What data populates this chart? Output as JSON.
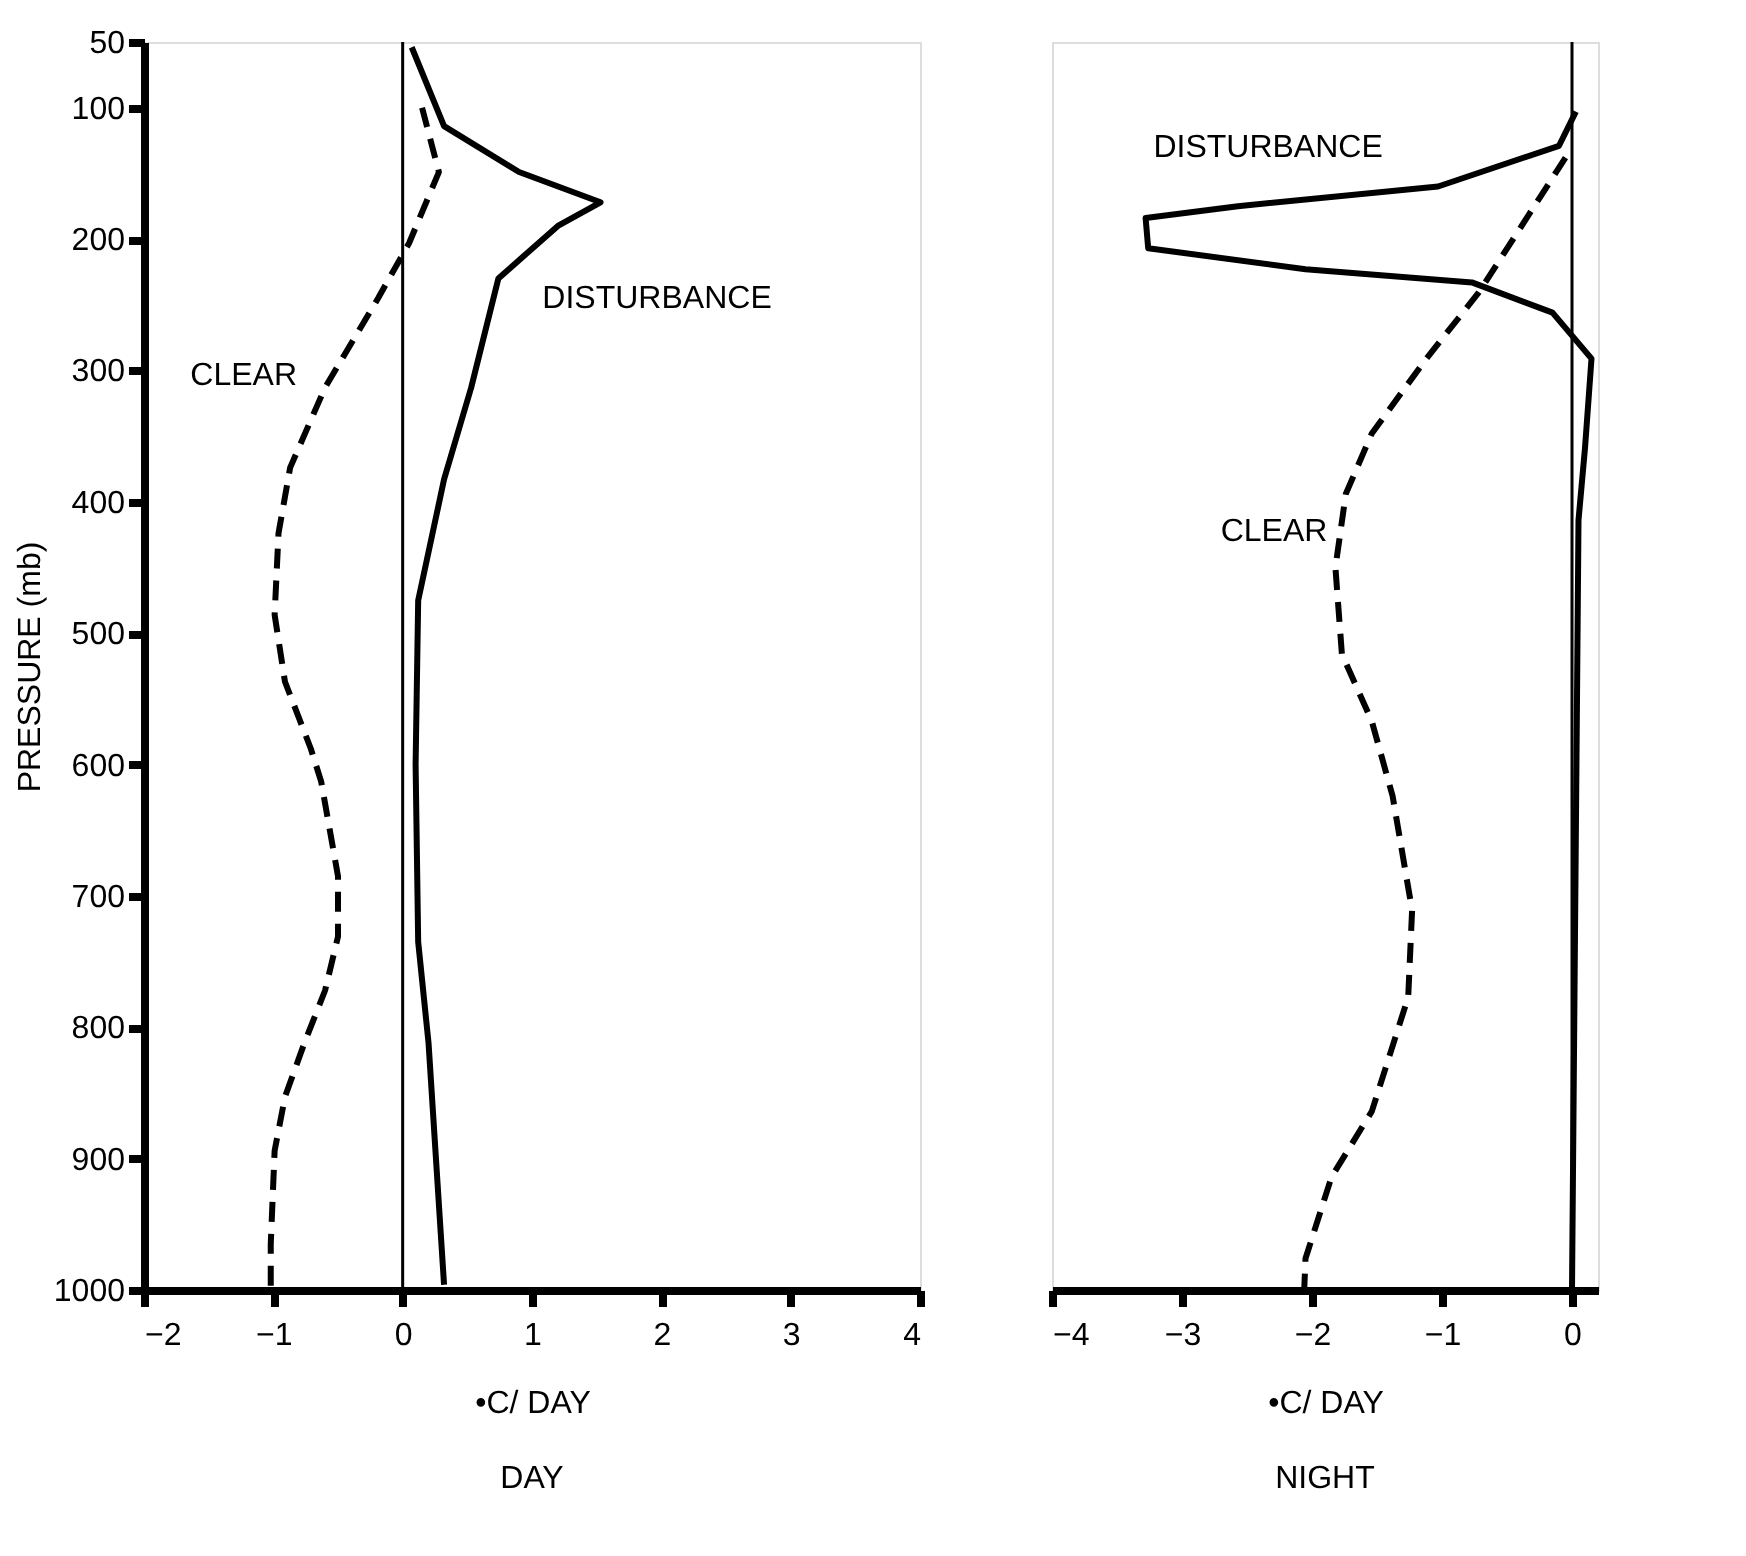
{
  "chart_data": [
    {
      "type": "line",
      "title": "DAY",
      "xlabel": "•C/ DAY",
      "ylabel": "PRESSURE (mb)",
      "xlim": [
        -2,
        4
      ],
      "xticks": [
        -2,
        -1,
        0,
        1,
        2,
        3,
        4
      ],
      "ylim": [
        1000,
        50
      ],
      "yticks": [
        50,
        100,
        200,
        300,
        400,
        500,
        600,
        700,
        800,
        900,
        1000
      ],
      "grid": false,
      "legend": false,
      "marker": "none",
      "ref_lines": [
        {
          "axis": "x",
          "value": 0,
          "color": "#000000"
        }
      ],
      "series": [
        {
          "name": "CLEAR",
          "color": "#000000",
          "line_style": "dashed",
          "x": [
            0.15,
            0.28,
            0.05,
            -0.19,
            -0.6,
            -0.87,
            -0.96,
            -0.99,
            -0.91,
            -0.71,
            -0.63,
            -0.5,
            -0.5,
            -0.6,
            -0.76,
            -0.91,
            -0.99,
            -1.02,
            -1.02
          ],
          "values": [
            100,
            149,
            203,
            245,
            313,
            374,
            424,
            486,
            537,
            588,
            613,
            685,
            731,
            772,
            812,
            853,
            894,
            965,
            1000
          ]
        },
        {
          "name": "DISTURBANCE",
          "color": "#000000",
          "line_style": "solid",
          "x": [
            0.07,
            0.32,
            0.9,
            1.53,
            1.2,
            0.74,
            0.53,
            0.32,
            0.12,
            0.1,
            0.12,
            0.2,
            0.32
          ],
          "values": [
            54,
            114,
            149,
            172,
            190,
            230,
            313,
            383,
            475,
            600,
            735,
            812,
            996
          ]
        }
      ]
    },
    {
      "type": "line",
      "title": "NIGHT",
      "xlabel": "•C/ DAY",
      "xlim": [
        -4,
        0.2
      ],
      "xticks": [
        -4,
        -3,
        -2,
        -1,
        0
      ],
      "ylim": [
        1000,
        50
      ],
      "yticks": [
        50,
        100,
        200,
        300,
        400,
        500,
        600,
        700,
        800,
        900,
        1000
      ],
      "tick_labels": "x",
      "grid": false,
      "legend": false,
      "marker": "none",
      "ref_lines": [
        {
          "axis": "x",
          "value": 0,
          "color": "#000000"
        }
      ],
      "series": [
        {
          "name": "DISTURBANCE",
          "color": "#000000",
          "line_style": "solid",
          "x": [
            0.03,
            -0.1,
            -1.03,
            -2.57,
            -3.28,
            -3.26,
            -2.05,
            -0.77,
            -0.15,
            0.15,
            0.1,
            0.05,
            0
          ],
          "values": [
            103,
            129,
            160,
            175,
            184,
            207,
            223,
            233,
            256,
            291,
            359,
            414,
            1000
          ]
        },
        {
          "name": "CLEAR",
          "color": "#000000",
          "line_style": "dashed",
          "x": [
            -0.05,
            -0.42,
            -0.72,
            -1.12,
            -1.54,
            -1.74,
            -1.82,
            -1.77,
            -1.54,
            -1.38,
            -1.23,
            -1.26,
            -1.54,
            -1.85,
            -2.05,
            -2.06
          ],
          "values": [
            138,
            195,
            241,
            291,
            348,
            394,
            450,
            516,
            567,
            624,
            711,
            777,
            864,
            914,
            976,
            1000
          ]
        }
      ]
    }
  ]
}
